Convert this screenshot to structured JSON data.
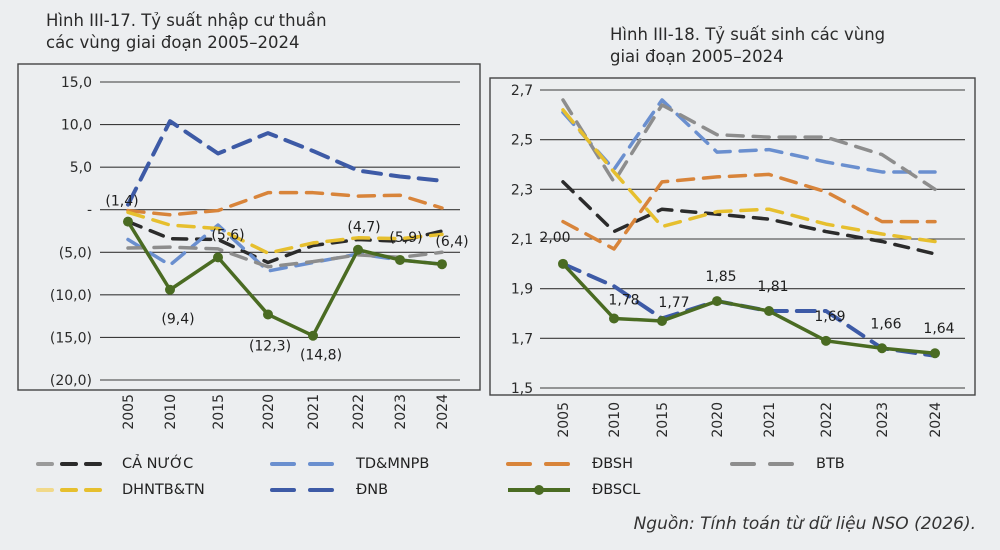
{
  "chart_data": [
    {
      "type": "line",
      "title": "Hình III-17. Tỷ suất nhập cư thuần các vùng giai đoạn 2005–2024",
      "title_lines": [
        "Hình III-17. Tỷ suất nhập cư thuần",
        "các vùng giai đoạn 2005–2024"
      ],
      "x": [
        "2005",
        "2010",
        "2015",
        "2020",
        "2021",
        "2022",
        "2023",
        "2024"
      ],
      "y_tick_values": [
        15,
        10,
        5,
        0,
        -5,
        -10,
        -15,
        -20
      ],
      "y_tick_labels": [
        "15,0",
        "10,0",
        "5,0",
        "-",
        "(5,0)",
        "(10,0)",
        "(15,0)",
        "(20,0)"
      ],
      "ylim": [
        -20,
        15
      ],
      "grid": "horizontal",
      "series": [
        {
          "name": "CẢ NƯỚC",
          "values": [
            -1.4,
            -3.4,
            -3.5,
            -6.2,
            -4.2,
            -3.5,
            -3.7,
            -2.5
          ]
        },
        {
          "name": "TD&MNPB",
          "values": [
            -3.5,
            -6.5,
            -1.8,
            -7.2,
            -6.2,
            -5.2,
            -5.9,
            -6.4
          ]
        },
        {
          "name": "ĐBSH",
          "values": [
            -0.1,
            -0.6,
            -0.1,
            2.0,
            2.0,
            1.6,
            1.7,
            0.2
          ]
        },
        {
          "name": "BTB",
          "values": [
            -4.5,
            -4.4,
            -4.6,
            -6.7,
            -6.1,
            -5.3,
            -5.6,
            -5.0
          ]
        },
        {
          "name": "DHNTB&TN",
          "values": [
            -0.3,
            -1.8,
            -2.2,
            -5.1,
            -3.9,
            -3.3,
            -3.4,
            -2.9
          ]
        },
        {
          "name": "ĐNB",
          "values": [
            0.6,
            10.4,
            6.6,
            9.0,
            6.9,
            4.6,
            3.9,
            3.4
          ]
        },
        {
          "name": "ĐBSCL",
          "values": [
            -1.4,
            -9.4,
            -5.6,
            -12.3,
            -14.8,
            -4.7,
            -5.9,
            -6.4
          ]
        }
      ],
      "data_labels": [
        "(1,4)",
        "(9,4)",
        "(5,6)",
        "(12,3)",
        "(14,8)",
        "(4,7)",
        "(5,9)",
        "(6,4)"
      ]
    },
    {
      "type": "line",
      "title": "Hình III-18. Tỷ suất sinh các vùng giai đoạn 2005–2024",
      "title_lines": [
        "Hình III-18. Tỷ suất sinh các vùng",
        "giai đoạn 2005–2024"
      ],
      "x": [
        "2005",
        "2010",
        "2015",
        "2020",
        "2021",
        "2022",
        "2023",
        "2024"
      ],
      "y_tick_values": [
        2.7,
        2.5,
        2.3,
        2.1,
        1.9,
        1.7,
        1.5
      ],
      "y_tick_labels": [
        "2,7",
        "2,5",
        "2,3",
        "2,1",
        "1,9",
        "1,7",
        "1,5"
      ],
      "ylim": [
        1.5,
        2.7
      ],
      "grid": "horizontal",
      "series": [
        {
          "name": "CẢ NƯỚC",
          "values": [
            2.33,
            2.13,
            2.22,
            2.2,
            2.18,
            2.13,
            2.09,
            2.04
          ]
        },
        {
          "name": "TD&MNPB",
          "values": [
            2.61,
            2.38,
            2.66,
            2.45,
            2.46,
            2.41,
            2.37,
            2.37
          ]
        },
        {
          "name": "ĐBSH",
          "values": [
            2.17,
            2.06,
            2.33,
            2.35,
            2.36,
            2.29,
            2.17,
            2.17
          ]
        },
        {
          "name": "BTB",
          "values": [
            2.66,
            2.33,
            2.64,
            2.52,
            2.51,
            2.51,
            2.44,
            2.3
          ]
        },
        {
          "name": "DHNTB&TN",
          "values": [
            2.62,
            2.37,
            2.15,
            2.21,
            2.22,
            2.16,
            2.12,
            2.09
          ]
        },
        {
          "name": "ĐNB",
          "values": [
            2.0,
            1.91,
            1.78,
            1.85,
            1.81,
            1.81,
            1.66,
            1.63
          ]
        },
        {
          "name": "ĐBSCL",
          "values": [
            2.0,
            1.78,
            1.77,
            1.85,
            1.81,
            1.69,
            1.66,
            1.64
          ]
        }
      ],
      "data_labels": [
        "2,00",
        "1,78",
        "1,77",
        "1,85",
        "1,81",
        "1,69",
        "1,66",
        "1,64"
      ]
    }
  ],
  "legend": [
    {
      "name": "CẢ NƯỚC"
    },
    {
      "name": "TD&MNPB"
    },
    {
      "name": "ĐBSH"
    },
    {
      "name": "BTB"
    },
    {
      "name": "DHNTB&TN"
    },
    {
      "name": "ĐNB"
    },
    {
      "name": "ĐBSCL"
    }
  ],
  "colors": {
    "CẢ NƯỚC": "#2b2b2b",
    "CẢ NƯỚC light": "#9a9a9a",
    "TD&MNPB": "#6a8fcf",
    "ĐBSH": "#d8843a",
    "BTB": "#8d8d8d",
    "DHNTB&TN": "#e6bf2e",
    "DHNTB&TN light": "#f1d98a",
    "ĐNB": "#3d5aa6",
    "ĐBSCL": "#4a6b22"
  },
  "source": "Nguồn: Tính toán từ dữ liệu NSO (2026)."
}
